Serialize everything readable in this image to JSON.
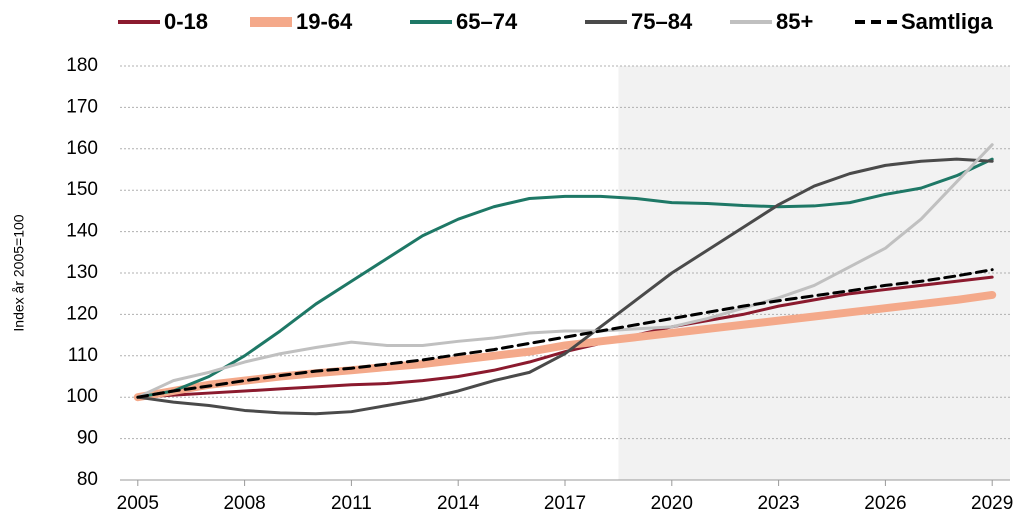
{
  "chart_data": {
    "type": "line",
    "y_label": "Index år 2005=100",
    "x": [
      2005,
      2006,
      2007,
      2008,
      2009,
      2010,
      2011,
      2012,
      2013,
      2014,
      2015,
      2016,
      2017,
      2018,
      2019,
      2020,
      2021,
      2022,
      2023,
      2024,
      2025,
      2026,
      2027,
      2028,
      2029
    ],
    "xlim": [
      2004.5,
      2029.5
    ],
    "xticks": [
      2005,
      2008,
      2011,
      2014,
      2017,
      2020,
      2023,
      2026,
      2029
    ],
    "ylim": [
      80,
      180
    ],
    "yticks": [
      80,
      90,
      100,
      110,
      120,
      130,
      140,
      150,
      160,
      170,
      180
    ],
    "grid": true,
    "legend": "top",
    "forecast_start": 2018.5,
    "series": [
      {
        "name": "0-18",
        "color": "#8b1a2e",
        "values": [
          100,
          100.5,
          101,
          101.5,
          102,
          102.5,
          103,
          103.3,
          104,
          105,
          106.5,
          108.5,
          111,
          113,
          115,
          117,
          118.5,
          120,
          122,
          123.5,
          125,
          126,
          127,
          128,
          129
        ]
      },
      {
        "name": "19-64",
        "color": "#f4a98a",
        "values": [
          100,
          101.5,
          103,
          104,
          105,
          105.8,
          106.5,
          107.3,
          108,
          109,
          110,
          111,
          112.5,
          113.5,
          114.5,
          115.5,
          116.5,
          117.5,
          118.5,
          119.5,
          120.5,
          121.5,
          122.5,
          123.5,
          124.7
        ]
      },
      {
        "name": "65–74",
        "color": "#1e7866",
        "values": [
          100,
          101.5,
          105,
          110,
          116,
          122.5,
          128,
          133.5,
          139,
          143,
          146,
          148,
          148.5,
          148.5,
          148,
          147,
          146.8,
          146.3,
          146,
          146.2,
          147,
          149,
          150.5,
          153.5,
          157.5
        ]
      },
      {
        "name": "75–84",
        "color": "#4a4a4a",
        "values": [
          100,
          98.8,
          98,
          96.8,
          96.2,
          96,
          96.5,
          98,
          99.5,
          101.5,
          104,
          106,
          110.5,
          117,
          123.5,
          130,
          135.5,
          141,
          146.5,
          151,
          154,
          156,
          157,
          157.5,
          157
        ]
      },
      {
        "name": "85+",
        "color": "#c0c0c0",
        "values": [
          100,
          104,
          106,
          108.5,
          110.5,
          112,
          113.3,
          112.5,
          112.5,
          113.5,
          114.3,
          115.5,
          116,
          116,
          116.5,
          117,
          119,
          121.5,
          124,
          127,
          131.5,
          136,
          143,
          152,
          161
        ]
      },
      {
        "name": "Samtliga",
        "color": "#000000",
        "dashed": true,
        "values": [
          100,
          101.5,
          102.7,
          104,
          105.2,
          106.3,
          107,
          108,
          109,
          110.3,
          111.5,
          113,
          114.5,
          116,
          117.5,
          119,
          120.5,
          122,
          123.3,
          124.5,
          125.7,
          127,
          128,
          129.3,
          130.8
        ]
      }
    ]
  }
}
